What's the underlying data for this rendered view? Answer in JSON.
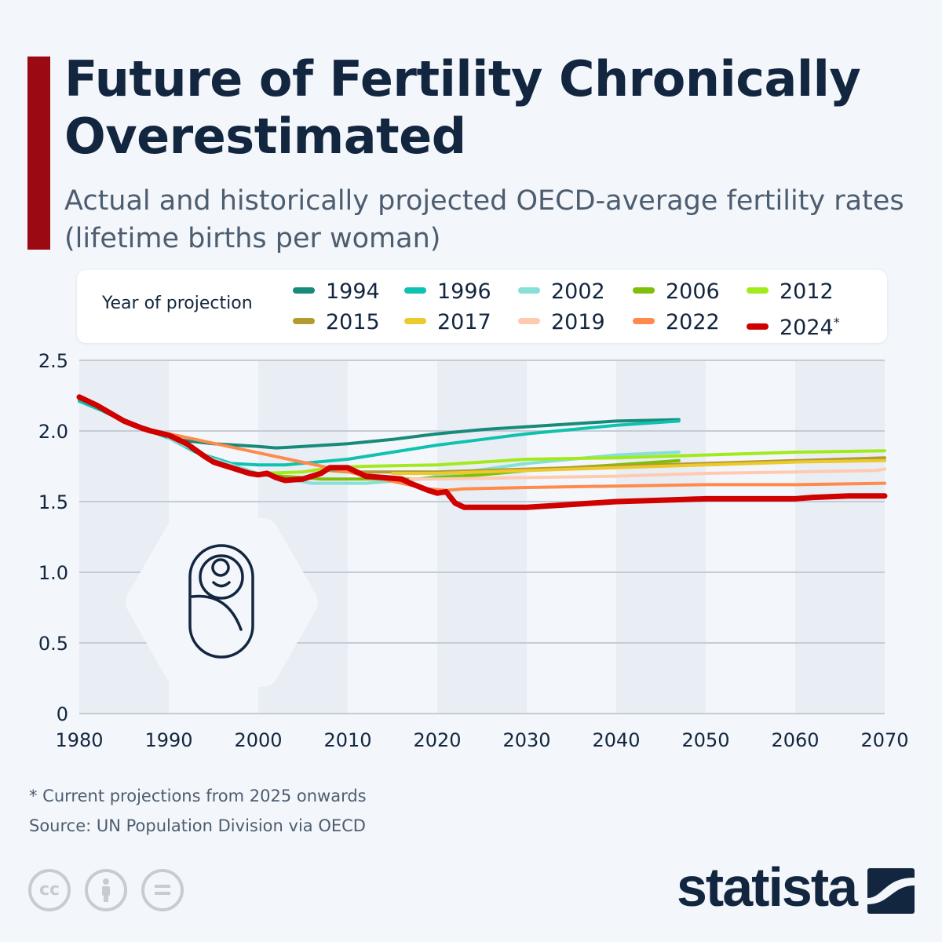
{
  "header": {
    "title": "Future of Fertility Chronically Overestimated",
    "subtitle": "Actual and historically projected OECD-average fertility rates (lifetime births per woman)"
  },
  "legend": {
    "title": "Year of projection",
    "items": [
      {
        "label": "1994",
        "color": "#178a7a"
      },
      {
        "label": "1996",
        "color": "#0fc2b0"
      },
      {
        "label": "2002",
        "color": "#86e0d8"
      },
      {
        "label": "2006",
        "color": "#7fbf0c"
      },
      {
        "label": "2012",
        "color": "#a3ea1c"
      },
      {
        "label": "2015",
        "color": "#b39a32"
      },
      {
        "label": "2017",
        "color": "#ecc92c"
      },
      {
        "label": "2019",
        "color": "#ffcab0"
      },
      {
        "label": "2022",
        "color": "#ff8a4c"
      },
      {
        "label": "2024",
        "color": "#d00000",
        "marker": "*"
      }
    ]
  },
  "chart_data": {
    "type": "line",
    "xlim": [
      1980,
      2070
    ],
    "ylim": [
      0,
      2.5
    ],
    "x_ticks": [
      "1980",
      "1990",
      "2000",
      "2010",
      "2020",
      "2030",
      "2040",
      "2050",
      "2060",
      "2070"
    ],
    "y_ticks": [
      "0",
      "0.5",
      "1.0",
      "1.5",
      "2.0",
      "2.5"
    ],
    "grid": true,
    "legend_position": "top",
    "series": [
      {
        "name": "1994",
        "color": "#178a7a",
        "points": [
          [
            1980,
            2.22
          ],
          [
            1985,
            2.07
          ],
          [
            1990,
            1.95
          ],
          [
            1992,
            1.93
          ],
          [
            1995,
            1.91
          ],
          [
            2000,
            1.89
          ],
          [
            2002,
            1.88
          ],
          [
            2005,
            1.89
          ],
          [
            2010,
            1.91
          ],
          [
            2015,
            1.94
          ],
          [
            2020,
            1.98
          ],
          [
            2025,
            2.01
          ],
          [
            2030,
            2.03
          ],
          [
            2035,
            2.05
          ],
          [
            2040,
            2.07
          ],
          [
            2047,
            2.08
          ]
        ]
      },
      {
        "name": "1996",
        "color": "#0fc2b0",
        "points": [
          [
            1980,
            2.21
          ],
          [
            1985,
            2.08
          ],
          [
            1990,
            1.95
          ],
          [
            1993,
            1.85
          ],
          [
            1997,
            1.77
          ],
          [
            2000,
            1.76
          ],
          [
            2003,
            1.76
          ],
          [
            2010,
            1.8
          ],
          [
            2015,
            1.85
          ],
          [
            2020,
            1.9
          ],
          [
            2025,
            1.94
          ],
          [
            2030,
            1.98
          ],
          [
            2035,
            2.01
          ],
          [
            2040,
            2.04
          ],
          [
            2047,
            2.07
          ]
        ]
      },
      {
        "name": "2002",
        "color": "#86e0d8",
        "points": [
          [
            1990,
            1.95
          ],
          [
            1995,
            1.8
          ],
          [
            2000,
            1.7
          ],
          [
            2003,
            1.66
          ],
          [
            2006,
            1.63
          ],
          [
            2012,
            1.63
          ],
          [
            2018,
            1.66
          ],
          [
            2022,
            1.7
          ],
          [
            2030,
            1.77
          ],
          [
            2035,
            1.8
          ],
          [
            2040,
            1.83
          ],
          [
            2047,
            1.85
          ]
        ]
      },
      {
        "name": "2006",
        "color": "#7fbf0c",
        "points": [
          [
            2000,
            1.69
          ],
          [
            2005,
            1.67
          ],
          [
            2007,
            1.66
          ],
          [
            2012,
            1.66
          ],
          [
            2018,
            1.66
          ],
          [
            2020,
            1.67
          ],
          [
            2025,
            1.69
          ],
          [
            2030,
            1.72
          ],
          [
            2035,
            1.74
          ],
          [
            2040,
            1.76
          ],
          [
            2047,
            1.79
          ]
        ]
      },
      {
        "name": "2012",
        "color": "#a3ea1c",
        "points": [
          [
            2000,
            1.7
          ],
          [
            2005,
            1.71
          ],
          [
            2008,
            1.74
          ],
          [
            2012,
            1.75
          ],
          [
            2020,
            1.76
          ],
          [
            2025,
            1.78
          ],
          [
            2030,
            1.8
          ],
          [
            2040,
            1.81
          ],
          [
            2050,
            1.83
          ],
          [
            2060,
            1.85
          ],
          [
            2070,
            1.86
          ]
        ]
      },
      {
        "name": "2015",
        "color": "#b39a32",
        "points": [
          [
            2008,
            1.72
          ],
          [
            2010,
            1.71
          ],
          [
            2015,
            1.71
          ],
          [
            2020,
            1.71
          ],
          [
            2025,
            1.72
          ],
          [
            2030,
            1.73
          ],
          [
            2040,
            1.75
          ],
          [
            2050,
            1.77
          ],
          [
            2060,
            1.79
          ],
          [
            2070,
            1.81
          ]
        ]
      },
      {
        "name": "2017",
        "color": "#ecc92c",
        "points": [
          [
            2015,
            1.7
          ],
          [
            2020,
            1.7
          ],
          [
            2030,
            1.72
          ],
          [
            2040,
            1.74
          ],
          [
            2050,
            1.76
          ],
          [
            2060,
            1.78
          ],
          [
            2070,
            1.79
          ]
        ]
      },
      {
        "name": "2019",
        "color": "#ffcab0",
        "points": [
          [
            2017,
            1.66
          ],
          [
            2020,
            1.66
          ],
          [
            2030,
            1.67
          ],
          [
            2040,
            1.68
          ],
          [
            2050,
            1.7
          ],
          [
            2060,
            1.71
          ],
          [
            2069,
            1.72
          ],
          [
            2070,
            1.73
          ]
        ]
      },
      {
        "name": "2022",
        "color": "#ff8a4c",
        "points": [
          [
            1987,
            2.01
          ],
          [
            1990,
            1.98
          ],
          [
            2019,
            1.59
          ],
          [
            2021,
            1.58
          ],
          [
            2023,
            1.59
          ],
          [
            2030,
            1.6
          ],
          [
            2040,
            1.61
          ],
          [
            2050,
            1.62
          ],
          [
            2060,
            1.62
          ],
          [
            2070,
            1.63
          ]
        ]
      },
      {
        "name": "2024",
        "color": "#d00000",
        "points": [
          [
            1980,
            2.24
          ],
          [
            1982,
            2.18
          ],
          [
            1985,
            2.07
          ],
          [
            1987,
            2.02
          ],
          [
            1988,
            2.0
          ],
          [
            1990,
            1.97
          ],
          [
            1992,
            1.91
          ],
          [
            1994,
            1.82
          ],
          [
            1995,
            1.78
          ],
          [
            1997,
            1.74
          ],
          [
            1999,
            1.7
          ],
          [
            2000,
            1.69
          ],
          [
            2001,
            1.7
          ],
          [
            2002,
            1.67
          ],
          [
            2003,
            1.65
          ],
          [
            2005,
            1.66
          ],
          [
            2007,
            1.7
          ],
          [
            2008,
            1.74
          ],
          [
            2010,
            1.74
          ],
          [
            2012,
            1.68
          ],
          [
            2014,
            1.67
          ],
          [
            2016,
            1.66
          ],
          [
            2017,
            1.63
          ],
          [
            2019,
            1.58
          ],
          [
            2020,
            1.56
          ],
          [
            2021,
            1.57
          ],
          [
            2022,
            1.49
          ],
          [
            2023,
            1.46
          ],
          [
            2030,
            1.46
          ],
          [
            2035,
            1.48
          ],
          [
            2040,
            1.5
          ],
          [
            2045,
            1.51
          ],
          [
            2050,
            1.52
          ],
          [
            2060,
            1.52
          ],
          [
            2062,
            1.53
          ],
          [
            2066,
            1.54
          ],
          [
            2070,
            1.54
          ]
        ]
      }
    ]
  },
  "footer": {
    "note": "* Current projections from 2025 onwards",
    "source": "Source: UN Population Division via OECD",
    "logo": "statista",
    "license_icons": [
      "cc-icon",
      "attribution-icon",
      "no-derivatives-icon"
    ],
    "cc_label": "cc"
  }
}
